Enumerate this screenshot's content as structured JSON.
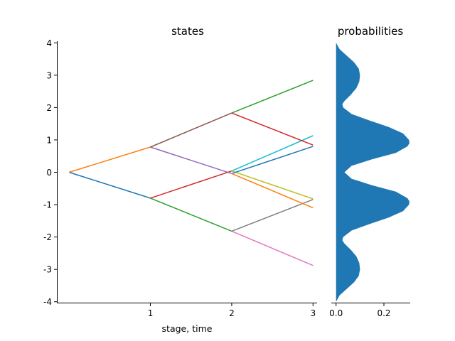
{
  "chart_data": [
    {
      "type": "line",
      "title": "states",
      "xlabel": "stage, time",
      "ylabel": "",
      "xlim": [
        -0.15,
        3.05
      ],
      "ylim": [
        -4.05,
        4.05
      ],
      "xticks": [
        1,
        2,
        3
      ],
      "yticks": [
        -4,
        -3,
        -2,
        -1,
        0,
        1,
        2,
        3,
        4
      ],
      "grid": false,
      "series": [
        {
          "color": "#1f77b4",
          "points": [
            [
              0,
              0
            ],
            [
              1,
              -0.8
            ]
          ]
        },
        {
          "color": "#ff7f0e",
          "points": [
            [
              0,
              0
            ],
            [
              1,
              0.78
            ]
          ]
        },
        {
          "color": "#2ca02c",
          "points": [
            [
              1,
              -0.8
            ],
            [
              2,
              -1.82
            ]
          ]
        },
        {
          "color": "#d62728",
          "points": [
            [
              1,
              -0.8
            ],
            [
              2,
              0.04
            ]
          ]
        },
        {
          "color": "#9467bd",
          "points": [
            [
              1,
              0.78
            ],
            [
              2,
              -0.04
            ]
          ]
        },
        {
          "color": "#8c564b",
          "points": [
            [
              1,
              0.78
            ],
            [
              2,
              1.83
            ]
          ]
        },
        {
          "color": "#e377c2",
          "points": [
            [
              2,
              -1.82
            ],
            [
              3,
              -2.88
            ]
          ]
        },
        {
          "color": "#7f7f7f",
          "points": [
            [
              2,
              -1.82
            ],
            [
              3,
              -0.84
            ]
          ]
        },
        {
          "color": "#bcbd22",
          "points": [
            [
              2,
              0.04
            ],
            [
              3,
              -0.82
            ]
          ]
        },
        {
          "color": "#17becf",
          "points": [
            [
              2,
              0.04
            ],
            [
              3,
              1.13
            ]
          ]
        },
        {
          "color": "#1f77b4",
          "points": [
            [
              2,
              -0.04
            ],
            [
              3,
              0.8
            ]
          ]
        },
        {
          "color": "#ff7f0e",
          "points": [
            [
              2,
              -0.04
            ],
            [
              3,
              -1.1
            ]
          ]
        },
        {
          "color": "#2ca02c",
          "points": [
            [
              2,
              1.83
            ],
            [
              3,
              2.84
            ]
          ]
        },
        {
          "color": "#d62728",
          "points": [
            [
              2,
              1.83
            ],
            [
              3,
              0.84
            ]
          ]
        }
      ]
    },
    {
      "type": "area",
      "title": "probabilities",
      "xlabel": "",
      "ylabel": "",
      "xlim": [
        -0.02,
        0.31
      ],
      "ylim": [
        -4.05,
        4.05
      ],
      "xticks": [
        0.0,
        0.2
      ],
      "xtick_labels": [
        "0.0",
        "0.2"
      ],
      "grid": false,
      "fill_color": "#1f77b4",
      "density": [
        [
          -4.0,
          0.0
        ],
        [
          -3.8,
          0.015
        ],
        [
          -3.6,
          0.045
        ],
        [
          -3.4,
          0.075
        ],
        [
          -3.2,
          0.095
        ],
        [
          -3.0,
          0.1
        ],
        [
          -2.8,
          0.097
        ],
        [
          -2.6,
          0.085
        ],
        [
          -2.4,
          0.062
        ],
        [
          -2.2,
          0.035
        ],
        [
          -2.1,
          0.026
        ],
        [
          -2.0,
          0.03
        ],
        [
          -1.8,
          0.065
        ],
        [
          -1.6,
          0.14
        ],
        [
          -1.4,
          0.22
        ],
        [
          -1.2,
          0.28
        ],
        [
          -1.0,
          0.305
        ],
        [
          -0.9,
          0.307
        ],
        [
          -0.8,
          0.298
        ],
        [
          -0.6,
          0.25
        ],
        [
          -0.4,
          0.15
        ],
        [
          -0.2,
          0.065
        ],
        [
          0.0,
          0.035
        ],
        [
          0.2,
          0.065
        ],
        [
          0.4,
          0.15
        ],
        [
          0.6,
          0.25
        ],
        [
          0.8,
          0.298
        ],
        [
          0.9,
          0.307
        ],
        [
          1.0,
          0.305
        ],
        [
          1.2,
          0.28
        ],
        [
          1.4,
          0.22
        ],
        [
          1.6,
          0.14
        ],
        [
          1.8,
          0.065
        ],
        [
          2.0,
          0.03
        ],
        [
          2.1,
          0.026
        ],
        [
          2.2,
          0.035
        ],
        [
          2.4,
          0.062
        ],
        [
          2.6,
          0.085
        ],
        [
          2.8,
          0.097
        ],
        [
          3.0,
          0.1
        ],
        [
          3.2,
          0.095
        ],
        [
          3.4,
          0.075
        ],
        [
          3.6,
          0.045
        ],
        [
          3.8,
          0.015
        ],
        [
          4.0,
          0.0
        ]
      ]
    }
  ]
}
